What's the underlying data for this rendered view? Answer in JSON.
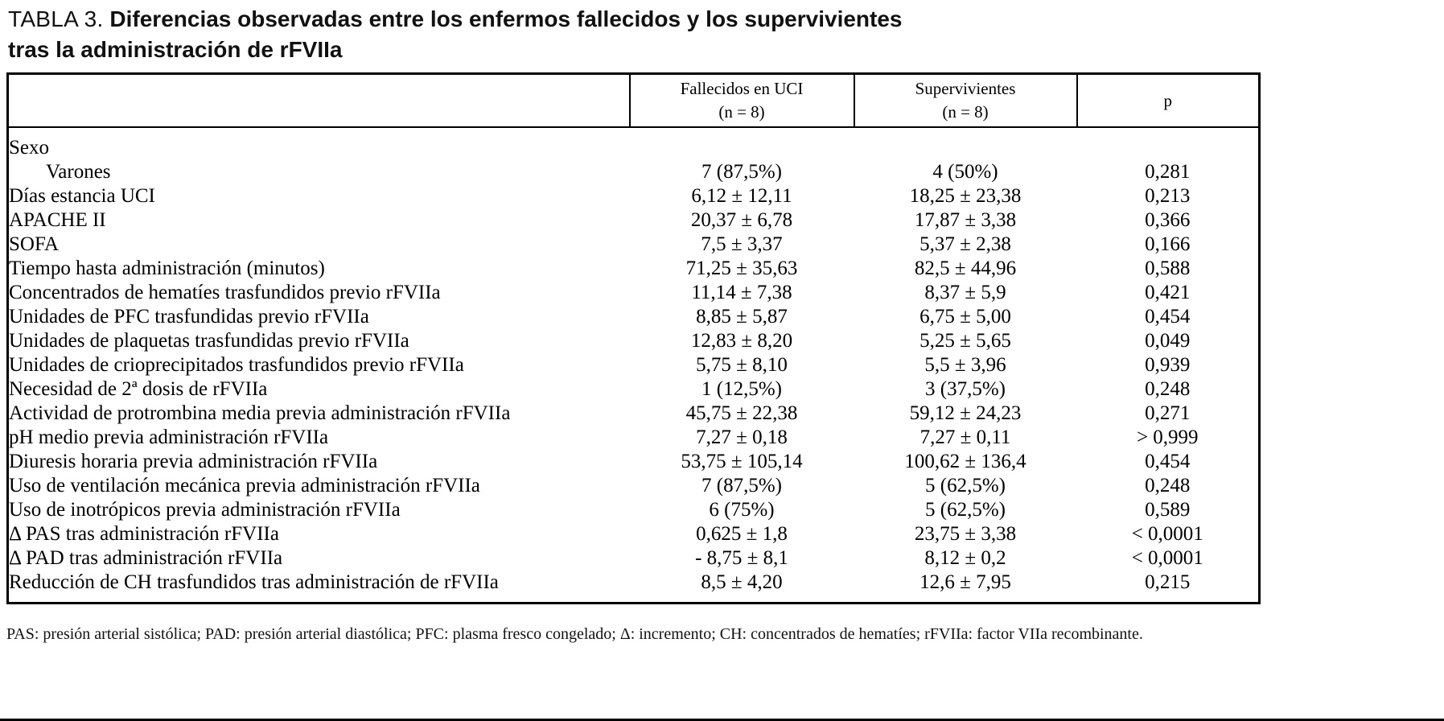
{
  "page": {
    "title_prefix": "TABLA 3.",
    "title_main": "Diferencias observadas entre los enfermos fallecidos y los supervivientes\ntras la administración de rFVIIa",
    "footnote": "PAS: presión arterial sistólica; PAD: presión arterial diastólica; PFC: plasma fresco congelado; Δ: incremento; CH: concentrados de hematíes; rFVIIa: factor VIIa recombinante."
  },
  "table": {
    "headers": {
      "label": "",
      "deceased": "Fallecidos en UCI\n(n = 8)",
      "survivors": "Supervivientes\n(n = 8)",
      "p": "p"
    },
    "rows": [
      {
        "label": "Sexo",
        "deceased": "",
        "survivors": "",
        "p": ""
      },
      {
        "label": "Varones",
        "indent": true,
        "deceased": "7 (87,5%)",
        "survivors": "4 (50%)",
        "p": "0,281"
      },
      {
        "label": "Días estancia UCI",
        "deceased": "6,12 ± 12,11",
        "survivors": "18,25 ± 23,38",
        "p": "0,213"
      },
      {
        "label": "APACHE II",
        "deceased": "20,37 ± 6,78",
        "survivors": "17,87 ± 3,38",
        "p": "0,366"
      },
      {
        "label": "SOFA",
        "deceased": "7,5 ± 3,37",
        "survivors": "5,37 ± 2,38",
        "p": "0,166"
      },
      {
        "label": "Tiempo hasta administración (minutos)",
        "deceased": "71,25 ± 35,63",
        "survivors": "82,5 ± 44,96",
        "p": "0,588"
      },
      {
        "label": "Concentrados de hematíes trasfundidos previo rFVIIa",
        "deceased": "11,14 ± 7,38",
        "survivors": "8,37 ± 5,9",
        "p": "0,421"
      },
      {
        "label": "Unidades de PFC trasfundidas previo rFVIIa",
        "deceased": "8,85 ± 5,87",
        "survivors": "6,75 ± 5,00",
        "p": "0,454"
      },
      {
        "label": "Unidades de plaquetas trasfundidas previo rFVIIa",
        "deceased": "12,83 ± 8,20",
        "survivors": "5,25 ± 5,65",
        "p": "0,049"
      },
      {
        "label": "Unidades de crioprecipitados trasfundidos previo rFVIIa",
        "deceased": "5,75 ± 8,10",
        "survivors": "5,5 ± 3,96",
        "p": "0,939"
      },
      {
        "label": "Necesidad de 2ª dosis de rFVIIa",
        "deceased": "1 (12,5%)",
        "survivors": "3 (37,5%)",
        "p": "0,248"
      },
      {
        "label": "Actividad de protrombina media previa administración rFVIIa",
        "deceased": "45,75 ± 22,38",
        "survivors": "59,12 ± 24,23",
        "p": "0,271"
      },
      {
        "label": "pH medio previa administración rFVIIa",
        "deceased": "7,27 ± 0,18",
        "survivors": "7,27 ± 0,11",
        "p": "> 0,999"
      },
      {
        "label": "Diuresis horaria previa administración rFVIIa",
        "deceased": "53,75 ± 105,14",
        "survivors": "100,62 ± 136,4",
        "p": "0,454"
      },
      {
        "label": "Uso de ventilación mecánica previa administración rFVIIa",
        "deceased": "7 (87,5%)",
        "survivors": "5 (62,5%)",
        "p": "0,248"
      },
      {
        "label": "Uso de inotrópicos previa administración rFVIIa",
        "deceased": "6 (75%)",
        "survivors": "5 (62,5%)",
        "p": "0,589"
      },
      {
        "label": "Δ PAS tras administración rFVIIa",
        "deceased": "0,625 ± 1,8",
        "survivors": "23,75 ± 3,38",
        "p": "< 0,0001"
      },
      {
        "label": "Δ PAD tras administración rFVIIa",
        "deceased": "- 8,75 ± 8,1",
        "survivors": "8,12 ± 0,2",
        "p": "< 0,0001"
      },
      {
        "label": "Reducción de CH trasfundidos tras administración de rFVIIa",
        "deceased": "8,5 ± 4,20",
        "survivors": "12,6 ± 7,95",
        "p": "0,215"
      }
    ]
  }
}
